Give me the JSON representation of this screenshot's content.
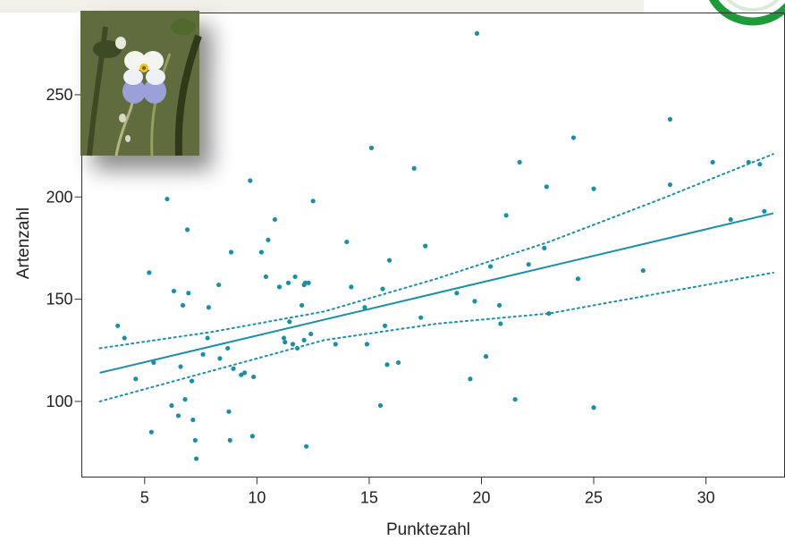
{
  "chart_data": {
    "type": "scatter",
    "title": "",
    "xlabel": "Punktezahl",
    "ylabel": "Artenzahl",
    "xlim": [
      2.2,
      33.5
    ],
    "ylim": [
      63,
      290
    ],
    "x_ticks": [
      5,
      10,
      15,
      20,
      25,
      30
    ],
    "y_ticks": [
      100,
      150,
      200,
      250
    ],
    "grid": false,
    "point_color": "#1a8fa8",
    "line_color": "#1a8fa8",
    "series": [
      {
        "kind": "points",
        "x": [
          3.8,
          4.1,
          4.6,
          5.2,
          5.3,
          5.4,
          6.0,
          6.2,
          6.3,
          6.5,
          6.6,
          6.7,
          6.8,
          6.9,
          6.95,
          7.1,
          7.15,
          7.25,
          7.3,
          7.6,
          7.8,
          7.85,
          8.3,
          8.35,
          8.7,
          8.75,
          8.8,
          8.85,
          8.95,
          9.3,
          9.45,
          9.7,
          9.8,
          9.85,
          10.2,
          10.4,
          10.5,
          10.8,
          11.0,
          11.2,
          11.25,
          11.4,
          11.45,
          11.6,
          11.7,
          11.8,
          12.0,
          12.1,
          12.1,
          12.15,
          12.2,
          12.3,
          12.4,
          12.5,
          13.5,
          14.0,
          14.2,
          14.8,
          14.9,
          15.1,
          15.5,
          15.6,
          15.7,
          15.8,
          15.9,
          16.3,
          17.0,
          17.3,
          17.5,
          18.9,
          19.5,
          19.7,
          19.8,
          20.2,
          20.4,
          20.8,
          20.85,
          21.1,
          21.5,
          21.7,
          22.1,
          22.8,
          22.9,
          23.0,
          24.1,
          24.3,
          25.0,
          25.0,
          27.2,
          28.4,
          28.4,
          30.3,
          31.1,
          31.9,
          32.4,
          32.6
        ],
        "y": [
          137,
          131,
          111,
          163,
          85,
          119,
          199,
          98,
          154,
          93,
          117,
          147,
          101,
          184,
          153,
          110,
          91,
          81,
          72,
          123,
          131,
          146,
          157,
          121,
          126,
          95,
          81,
          173,
          116,
          113,
          114,
          208,
          83,
          112,
          173,
          161,
          179,
          189,
          156,
          131,
          129,
          158,
          139,
          128,
          161,
          126,
          147,
          130,
          157,
          158,
          78,
          158,
          133,
          198,
          128,
          178,
          156,
          146,
          128,
          224,
          98,
          155,
          137,
          118,
          169,
          119,
          214,
          141,
          176,
          153,
          111,
          149,
          280,
          122,
          166,
          147,
          138,
          191,
          101,
          217,
          167,
          175,
          205,
          143,
          229,
          160,
          97,
          204,
          164,
          238,
          206,
          217,
          189,
          217,
          216,
          193
        ]
      },
      {
        "kind": "line",
        "style": "solid",
        "x": [
          3.0,
          33.0
        ],
        "y": [
          114,
          192
        ]
      },
      {
        "kind": "line",
        "style": "dotted",
        "x": [
          3.0,
          8.0,
          13.0,
          18.0,
          23.0,
          28.0,
          33.0
        ],
        "y": [
          126,
          134,
          144,
          160,
          178,
          199,
          221
        ]
      },
      {
        "kind": "line",
        "style": "dotted",
        "x": [
          3.0,
          8.0,
          13.0,
          18.0,
          23.0,
          28.0,
          33.0
        ],
        "y": [
          100,
          115,
          130,
          138,
          143,
          153,
          163
        ]
      }
    ]
  },
  "decor": {
    "photo": "pansy-flower-photo",
    "logo": "green-ring-logo"
  }
}
